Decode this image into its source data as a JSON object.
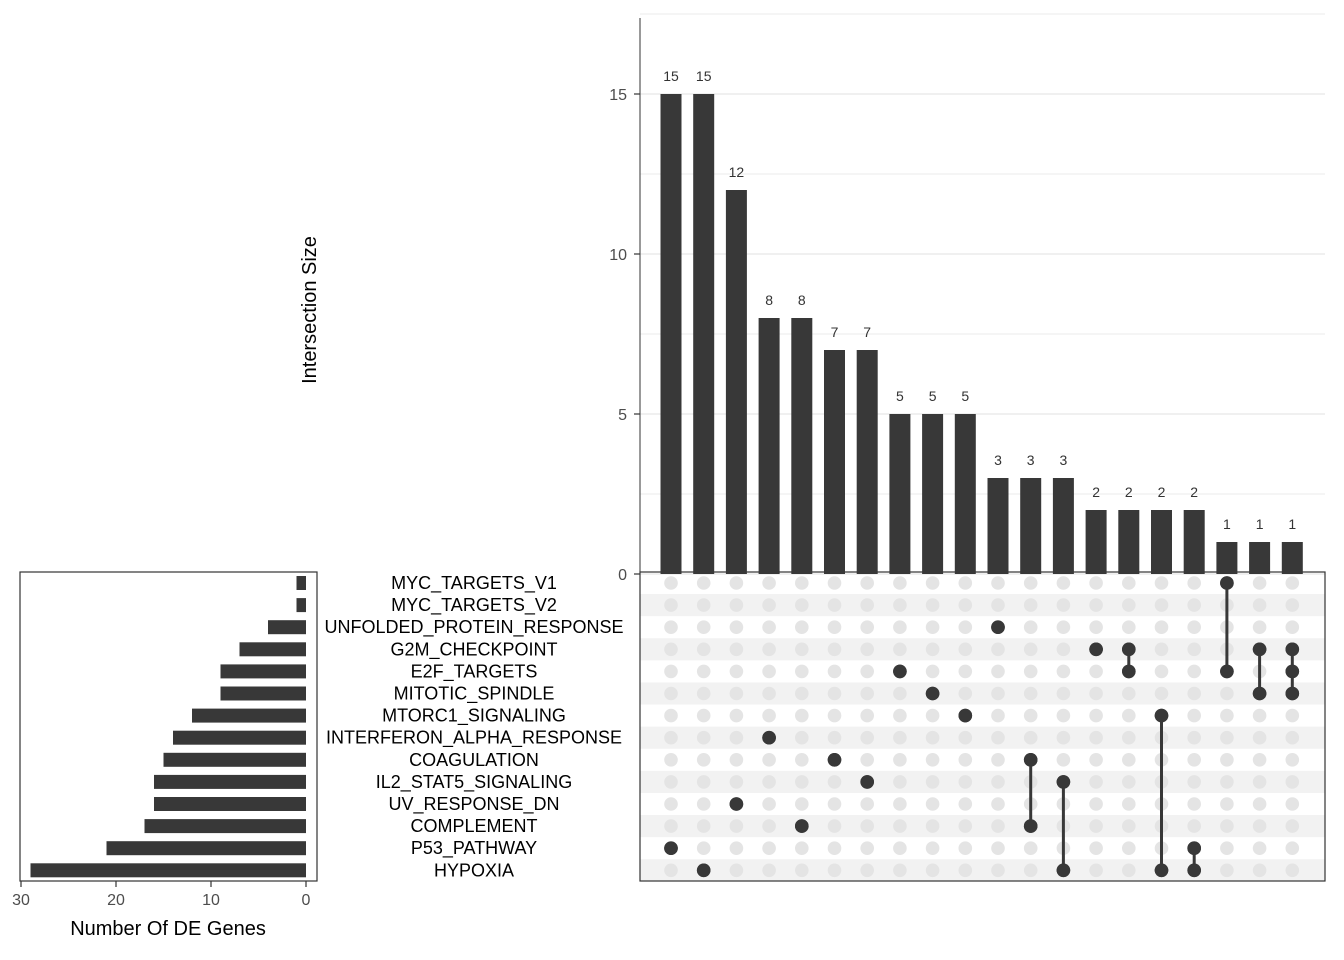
{
  "chart_data": {
    "type": "upset",
    "intersection_axis": {
      "title": "Intersection Size",
      "ylim": [
        0,
        17.5
      ],
      "ticks": [
        0,
        5,
        10,
        15
      ]
    },
    "set_size_axis": {
      "title": "Number Of DE Genes",
      "xlim": [
        30,
        0
      ],
      "ticks": [
        30,
        20,
        10,
        0
      ]
    },
    "sets": [
      "MYC_TARGETS_V1",
      "MYC_TARGETS_V2",
      "UNFOLDED_PROTEIN_RESPONSE",
      "G2M_CHECKPOINT",
      "E2F_TARGETS",
      "MITOTIC_SPINDLE",
      "MTORC1_SIGNALING",
      "INTERFERON_ALPHA_RESPONSE",
      "COAGULATION",
      "IL2_STAT5_SIGNALING",
      "UV_RESPONSE_DN",
      "COMPLEMENT",
      "P53_PATHWAY",
      "HYPOXIA"
    ],
    "set_sizes": [
      1,
      1,
      4,
      7,
      9,
      9,
      12,
      14,
      15,
      16,
      16,
      17,
      21,
      29
    ],
    "intersections": [
      {
        "size": 15,
        "members": [
          "P53_PATHWAY"
        ]
      },
      {
        "size": 15,
        "members": [
          "HYPOXIA"
        ]
      },
      {
        "size": 12,
        "members": [
          "UV_RESPONSE_DN"
        ]
      },
      {
        "size": 8,
        "members": [
          "INTERFERON_ALPHA_RESPONSE"
        ]
      },
      {
        "size": 8,
        "members": [
          "COMPLEMENT"
        ]
      },
      {
        "size": 7,
        "members": [
          "COAGULATION"
        ]
      },
      {
        "size": 7,
        "members": [
          "IL2_STAT5_SIGNALING"
        ]
      },
      {
        "size": 5,
        "members": [
          "E2F_TARGETS"
        ]
      },
      {
        "size": 5,
        "members": [
          "MITOTIC_SPINDLE"
        ]
      },
      {
        "size": 5,
        "members": [
          "MTORC1_SIGNALING"
        ]
      },
      {
        "size": 3,
        "members": [
          "UNFOLDED_PROTEIN_RESPONSE"
        ]
      },
      {
        "size": 3,
        "members": [
          "COAGULATION",
          "COMPLEMENT"
        ]
      },
      {
        "size": 3,
        "members": [
          "IL2_STAT5_SIGNALING",
          "HYPOXIA"
        ]
      },
      {
        "size": 2,
        "members": [
          "G2M_CHECKPOINT"
        ]
      },
      {
        "size": 2,
        "members": [
          "G2M_CHECKPOINT",
          "E2F_TARGETS"
        ]
      },
      {
        "size": 2,
        "members": [
          "MTORC1_SIGNALING",
          "HYPOXIA"
        ]
      },
      {
        "size": 2,
        "members": [
          "P53_PATHWAY",
          "HYPOXIA"
        ]
      },
      {
        "size": 1,
        "members": [
          "MYC_TARGETS_V1",
          "E2F_TARGETS"
        ]
      },
      {
        "size": 1,
        "members": [
          "G2M_CHECKPOINT",
          "MITOTIC_SPINDLE"
        ]
      },
      {
        "size": 1,
        "members": [
          "G2M_CHECKPOINT",
          "E2F_TARGETS",
          "MITOTIC_SPINDLE"
        ]
      }
    ],
    "colors": {
      "bar": "#383838",
      "dot_active": "#383838",
      "dot_inactive": "#e4e4e4",
      "stripe": "#f2f2f2",
      "grid": "#ebebeb"
    }
  }
}
